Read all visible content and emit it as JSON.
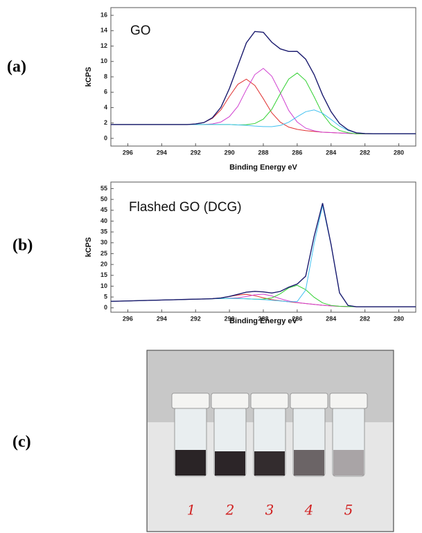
{
  "chart_data": [
    {
      "type": "line",
      "panel_label": "(a)",
      "annotation": "GO",
      "xlabel": "Binding Energy eV",
      "ylabel": "kCPS",
      "x": [
        297,
        296.5,
        296,
        295.5,
        295,
        294.5,
        294,
        293.5,
        293,
        292.5,
        292,
        291.5,
        291,
        290.5,
        290,
        289.5,
        289,
        288.5,
        288,
        287.5,
        287,
        286.5,
        286,
        285.5,
        285,
        284.5,
        284,
        283.5,
        283,
        282.5,
        282,
        281.5,
        281,
        280.5,
        280,
        279.5,
        279
      ],
      "xlim": [
        297,
        279
      ],
      "xticks": [
        296,
        294,
        292,
        290,
        288,
        286,
        284,
        282,
        280
      ],
      "ylim": [
        -1,
        17
      ],
      "yticks": [
        0,
        2,
        4,
        6,
        8,
        10,
        12,
        14,
        16
      ],
      "grid": false,
      "series": [
        {
          "color": "#e03030",
          "values": [
            1.8,
            1.8,
            1.8,
            1.8,
            1.8,
            1.8,
            1.8,
            1.8,
            1.8,
            1.8,
            1.87,
            2.06,
            2.61,
            3.72,
            5.46,
            7.03,
            7.7,
            6.88,
            5.16,
            3.32,
            2.11,
            1.46,
            1.17,
            1.0,
            0.9,
            0.8,
            0.75,
            0.7,
            0.65,
            0.6,
            0.6,
            0.6,
            0.6,
            0.6,
            0.6,
            0.6,
            0.6
          ]
        },
        {
          "color": "#d040d0",
          "values": [
            1.8,
            1.8,
            1.8,
            1.8,
            1.8,
            1.8,
            1.8,
            1.8,
            1.8,
            1.8,
            1.8,
            1.8,
            1.88,
            2.13,
            2.83,
            4.18,
            6.34,
            8.29,
            9.1,
            8.09,
            5.94,
            3.63,
            2.13,
            1.33,
            0.98,
            0.8,
            0.75,
            0.7,
            0.65,
            0.6,
            0.6,
            0.6,
            0.6,
            0.6,
            0.6,
            0.6,
            0.6
          ]
        },
        {
          "color": "#30d030",
          "values": [
            1.8,
            1.8,
            1.8,
            1.8,
            1.8,
            1.8,
            1.8,
            1.8,
            1.8,
            1.8,
            1.8,
            1.8,
            1.8,
            1.8,
            1.8,
            1.75,
            1.78,
            1.93,
            2.5,
            3.77,
            5.81,
            7.71,
            8.5,
            7.51,
            5.41,
            3.17,
            1.75,
            1.03,
            0.73,
            0.6,
            0.6,
            0.6,
            0.6,
            0.6,
            0.6,
            0.6,
            0.6
          ]
        },
        {
          "color": "#40c0f0",
          "values": [
            1.8,
            1.8,
            1.8,
            1.8,
            1.8,
            1.8,
            1.8,
            1.8,
            1.8,
            1.8,
            1.8,
            1.8,
            1.8,
            1.8,
            1.8,
            1.75,
            1.7,
            1.6,
            1.53,
            1.52,
            1.68,
            2.1,
            2.81,
            3.46,
            3.7,
            3.26,
            2.46,
            1.6,
            1.03,
            0.72,
            0.63,
            0.6,
            0.6,
            0.6,
            0.6,
            0.6,
            0.6
          ]
        },
        {
          "color": "#1a1a6e",
          "values": [
            1.8,
            1.8,
            1.8,
            1.8,
            1.8,
            1.8,
            1.8,
            1.8,
            1.8,
            1.8,
            1.87,
            2.06,
            2.69,
            4.05,
            6.49,
            9.46,
            12.42,
            13.9,
            13.79,
            12.5,
            11.64,
            11.3,
            11.31,
            10.3,
            8.29,
            5.63,
            3.46,
            1.93,
            1.11,
            0.72,
            0.63,
            0.6,
            0.6,
            0.6,
            0.6,
            0.6,
            0.6
          ]
        }
      ]
    },
    {
      "type": "line",
      "panel_label": "(b)",
      "annotation": "Flashed GO (DCG)",
      "xlabel": "Binding Energy eV",
      "ylabel": "kCPS",
      "x": [
        297,
        296.5,
        296,
        295.5,
        295,
        294.5,
        294,
        293.5,
        293,
        292.5,
        292,
        291.5,
        291,
        290.5,
        290,
        289.5,
        289,
        288.5,
        288,
        287.5,
        287,
        286.5,
        286,
        285.5,
        285,
        284.5,
        284,
        283.5,
        283,
        282.5,
        282,
        281.5,
        281,
        280.5,
        280,
        279.5,
        279
      ],
      "xlim": [
        297,
        279
      ],
      "xticks": [
        296,
        294,
        292,
        290,
        288,
        286,
        284,
        282,
        280
      ],
      "ylim": [
        -2,
        58
      ],
      "yticks": [
        0,
        5,
        10,
        15,
        20,
        25,
        30,
        35,
        40,
        45,
        50,
        55
      ],
      "grid": false,
      "series": [
        {
          "color": "#e03030",
          "values": [
            3.0,
            3.1,
            3.2,
            3.3,
            3.4,
            3.5,
            3.6,
            3.7,
            3.8,
            3.9,
            4.0,
            4.1,
            4.26,
            4.57,
            5.22,
            5.9,
            6.2,
            5.6,
            4.62,
            3.77,
            3.26,
            2.8,
            2.4,
            2.0,
            1.6,
            1.2,
            0.9,
            0.7,
            0.6,
            0.5,
            0.5,
            0.5,
            0.5,
            0.5,
            0.5,
            0.5,
            0.5
          ]
        },
        {
          "color": "#d040d0",
          "values": [
            3.0,
            3.1,
            3.2,
            3.3,
            3.4,
            3.5,
            3.6,
            3.7,
            3.8,
            3.9,
            4.0,
            4.1,
            4.2,
            4.3,
            4.47,
            4.64,
            5.23,
            6.0,
            6.3,
            5.5,
            4.23,
            3.14,
            2.47,
            2.0,
            1.6,
            1.2,
            0.9,
            0.7,
            0.6,
            0.5,
            0.5,
            0.5,
            0.5,
            0.5,
            0.5,
            0.5,
            0.5
          ]
        },
        {
          "color": "#30d030",
          "values": [
            3.0,
            3.1,
            3.2,
            3.3,
            3.4,
            3.5,
            3.6,
            3.7,
            3.8,
            3.9,
            4.0,
            4.1,
            4.2,
            4.3,
            4.4,
            4.3,
            4.2,
            4.0,
            4.03,
            4.58,
            6.48,
            9.2,
            10.4,
            8.4,
            4.88,
            2.28,
            1.13,
            0.7,
            0.6,
            0.5,
            0.5,
            0.5,
            0.5,
            0.5,
            0.5,
            0.5,
            0.5
          ]
        },
        {
          "color": "#40c0f0",
          "values": [
            3.0,
            3.1,
            3.2,
            3.3,
            3.4,
            3.5,
            3.6,
            3.7,
            3.8,
            3.9,
            4.0,
            4.1,
            4.2,
            4.3,
            4.4,
            4.3,
            4.2,
            4.0,
            3.8,
            3.5,
            3.2,
            2.8,
            2.91,
            8.21,
            29.66,
            47.2,
            28.96,
            6.91,
            1.11,
            0.5,
            0.5,
            0.5,
            0.5,
            0.5,
            0.5,
            0.5,
            0.5
          ]
        },
        {
          "color": "#1a1a6e",
          "values": [
            3.0,
            3.1,
            3.2,
            3.3,
            3.4,
            3.5,
            3.6,
            3.7,
            3.8,
            3.9,
            4.0,
            4.1,
            4.26,
            4.57,
            5.29,
            6.24,
            7.23,
            7.6,
            7.35,
            6.85,
            7.57,
            9.54,
            10.98,
            14.61,
            32.94,
            48.28,
            29.19,
            6.91,
            1.11,
            0.5,
            0.5,
            0.5,
            0.5,
            0.5,
            0.5,
            0.5,
            0.5
          ]
        }
      ]
    }
  ],
  "photo": {
    "panel_label": "(c)",
    "labels": [
      "1",
      "2",
      "3",
      "4",
      "5"
    ]
  }
}
